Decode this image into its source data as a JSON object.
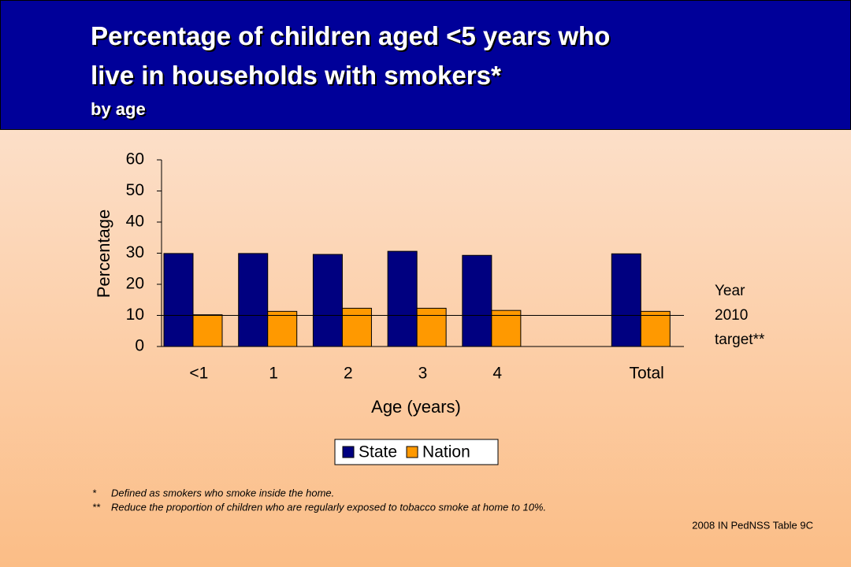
{
  "chart_data": {
    "type": "bar",
    "title": "Percentage of children aged <5 years who live in households with smokers*",
    "subtitle": "by age",
    "x_label": "Age (years)",
    "y_label": "Percentage",
    "categories": [
      "<1",
      "1",
      "2",
      "3",
      "4",
      null,
      "Total"
    ],
    "series": [
      {
        "name": "State",
        "color": "#000080",
        "values": [
          29.9,
          29.9,
          29.6,
          30.6,
          29.3,
          null,
          29.8
        ]
      },
      {
        "name": "Nation",
        "color": "#ff9900",
        "values": [
          10.2,
          11.3,
          12.3,
          12.3,
          11.6,
          null,
          11.3
        ]
      }
    ],
    "ylim": [
      0,
      60
    ],
    "yticks": [
      0,
      10,
      20,
      30,
      40,
      50,
      60
    ],
    "target": {
      "value": 10,
      "label": [
        "Year",
        "2010",
        "target**"
      ]
    },
    "legend": "bottom"
  },
  "footnotes": [
    {
      "mark": "*",
      "text": "Defined as smokers who smoke inside the home."
    },
    {
      "mark": "**",
      "text": "Reduce the proportion of children who are regularly exposed to tobacco smoke at home to 10%."
    }
  ],
  "source": "2008 IN PedNSS Table 9C"
}
